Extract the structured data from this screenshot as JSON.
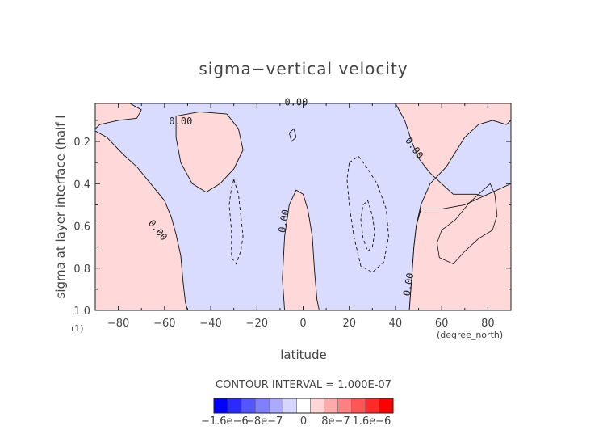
{
  "chart_data": {
    "type": "contour",
    "title": "sigma−vertical velocity",
    "xlabel": "latitude",
    "ylabel": "sigma at layer interface (half l",
    "x_units": "(degree_north)",
    "y_units": "(1)",
    "xlim": [
      -90,
      90
    ],
    "ylim": [
      1.0,
      0.02
    ],
    "xticks": [
      -80,
      -60,
      -40,
      -20,
      0,
      20,
      40,
      60,
      80
    ],
    "yticks": [
      0.2,
      0.4,
      0.6,
      0.8,
      1.0
    ],
    "contour_interval_text": "CONTOUR INTERVAL = 1.000E-07",
    "contour_labels": [
      "0.00",
      "0.00",
      "0.00",
      "0.00",
      "0.00",
      "0.00"
    ],
    "colors": {
      "positive": "#ffd9d9",
      "negative": "#dadcff",
      "contour": "#111111"
    },
    "colorbar": {
      "colors": [
        "#0000ff",
        "#2a2aff",
        "#5555ff",
        "#8080ff",
        "#aaaaff",
        "#d5d5ff",
        "#ffffff",
        "#ffd5d5",
        "#ffaaaa",
        "#ff8080",
        "#ff5555",
        "#ff2a2a",
        "#ff0000"
      ],
      "tick_labels": [
        "−1.6e−6",
        "−8e−7",
        "0",
        "8e−7",
        "1.6e−6"
      ]
    },
    "positive_regions": [
      {
        "name": "southern-subtropics",
        "points": [
          [
            -90,
            0.02
          ],
          [
            -90,
            0.15
          ],
          [
            -85,
            0.18
          ],
          [
            -78,
            0.26
          ],
          [
            -72,
            0.32
          ],
          [
            -66,
            0.4
          ],
          [
            -60,
            0.48
          ],
          [
            -57,
            0.56
          ],
          [
            -55,
            0.64
          ],
          [
            -53,
            0.74
          ],
          [
            -52,
            0.86
          ],
          [
            -51,
            0.96
          ],
          [
            -50,
            1.0
          ],
          [
            -90,
            1.0
          ]
        ]
      },
      {
        "name": "upper-left-band",
        "points": [
          [
            -90,
            0.02
          ],
          [
            -75,
            0.02
          ],
          [
            -70,
            0.05
          ],
          [
            -72,
            0.09
          ],
          [
            -80,
            0.1
          ],
          [
            -88,
            0.12
          ],
          [
            -90,
            0.14
          ]
        ]
      },
      {
        "name": "southern-upper-lobe",
        "points": [
          [
            -55,
            0.08
          ],
          [
            -45,
            0.06
          ],
          [
            -33,
            0.07
          ],
          [
            -28,
            0.14
          ],
          [
            -26,
            0.24
          ],
          [
            -30,
            0.33
          ],
          [
            -36,
            0.4
          ],
          [
            -42,
            0.44
          ],
          [
            -48,
            0.4
          ],
          [
            -53,
            0.3
          ],
          [
            -55,
            0.18
          ]
        ]
      },
      {
        "name": "equatorial-tongue",
        "points": [
          [
            -8,
            1.0
          ],
          [
            -9,
            0.85
          ],
          [
            -8,
            0.65
          ],
          [
            -6,
            0.5
          ],
          [
            -3,
            0.43
          ],
          [
            0,
            0.45
          ],
          [
            2,
            0.52
          ],
          [
            4,
            0.65
          ],
          [
            5,
            0.82
          ],
          [
            6,
            0.95
          ],
          [
            7,
            1.0
          ]
        ]
      },
      {
        "name": "northern-tropics-and-midlatitudes",
        "points": [
          [
            40,
            0.02
          ],
          [
            44,
            0.1
          ],
          [
            47,
            0.2
          ],
          [
            50,
            0.28
          ],
          [
            55,
            0.35
          ],
          [
            60,
            0.4
          ],
          [
            65,
            0.45
          ],
          [
            75,
            0.45
          ],
          [
            85,
            0.48
          ],
          [
            90,
            0.5
          ],
          [
            90,
            1.0
          ],
          [
            46,
            1.0
          ],
          [
            47,
            0.85
          ],
          [
            48,
            0.7
          ],
          [
            49,
            0.6
          ],
          [
            51,
            0.5
          ],
          [
            55,
            0.4
          ],
          [
            62,
            0.32
          ],
          [
            66,
            0.25
          ],
          [
            70,
            0.18
          ],
          [
            76,
            0.12
          ],
          [
            82,
            0.1
          ],
          [
            88,
            0.12
          ],
          [
            90,
            0.1
          ],
          [
            90,
            0.02
          ]
        ]
      },
      {
        "name": "northern-lower-cell",
        "points": [
          [
            46,
            1.0
          ],
          [
            47,
            0.85
          ],
          [
            48,
            0.7
          ],
          [
            49,
            0.6
          ],
          [
            51,
            0.52
          ],
          [
            60,
            0.52
          ],
          [
            70,
            0.5
          ],
          [
            80,
            0.45
          ],
          [
            90,
            0.4
          ],
          [
            90,
            1.0
          ]
        ]
      }
    ],
    "dashed_contours": [
      {
        "name": "southern-negative-cell",
        "points": [
          [
            -30,
            0.38
          ],
          [
            -28,
            0.45
          ],
          [
            -27,
            0.55
          ],
          [
            -26,
            0.65
          ],
          [
            -27,
            0.72
          ],
          [
            -29,
            0.78
          ],
          [
            -31,
            0.75
          ],
          [
            -31,
            0.62
          ],
          [
            -32,
            0.5
          ],
          [
            -31,
            0.42
          ]
        ]
      },
      {
        "name": "northern-negative-cell-outer",
        "points": [
          [
            20,
            0.3
          ],
          [
            24,
            0.27
          ],
          [
            28,
            0.33
          ],
          [
            32,
            0.4
          ],
          [
            36,
            0.52
          ],
          [
            37,
            0.65
          ],
          [
            35,
            0.77
          ],
          [
            30,
            0.82
          ],
          [
            25,
            0.79
          ],
          [
            22,
            0.65
          ],
          [
            20,
            0.5
          ],
          [
            19,
            0.38
          ]
        ]
      },
      {
        "name": "northern-negative-cell-inner",
        "points": [
          [
            26,
            0.5
          ],
          [
            28,
            0.48
          ],
          [
            30,
            0.55
          ],
          [
            31,
            0.63
          ],
          [
            30,
            0.7
          ],
          [
            28,
            0.72
          ],
          [
            26,
            0.66
          ],
          [
            25,
            0.57
          ]
        ]
      }
    ],
    "solid_contours": [
      {
        "name": "northern-positive-cell",
        "points": [
          [
            60,
            0.62
          ],
          [
            66,
            0.57
          ],
          [
            72,
            0.49
          ],
          [
            78,
            0.43
          ],
          [
            81,
            0.4
          ],
          [
            83,
            0.45
          ],
          [
            84,
            0.55
          ],
          [
            82,
            0.62
          ],
          [
            76,
            0.66
          ],
          [
            70,
            0.72
          ],
          [
            65,
            0.78
          ],
          [
            59,
            0.75
          ],
          [
            58,
            0.68
          ]
        ]
      },
      {
        "name": "upper-small-cell",
        "points": [
          [
            -6,
            0.16
          ],
          [
            -4,
            0.14
          ],
          [
            -3,
            0.18
          ],
          [
            -5,
            0.2
          ]
        ]
      }
    ]
  }
}
